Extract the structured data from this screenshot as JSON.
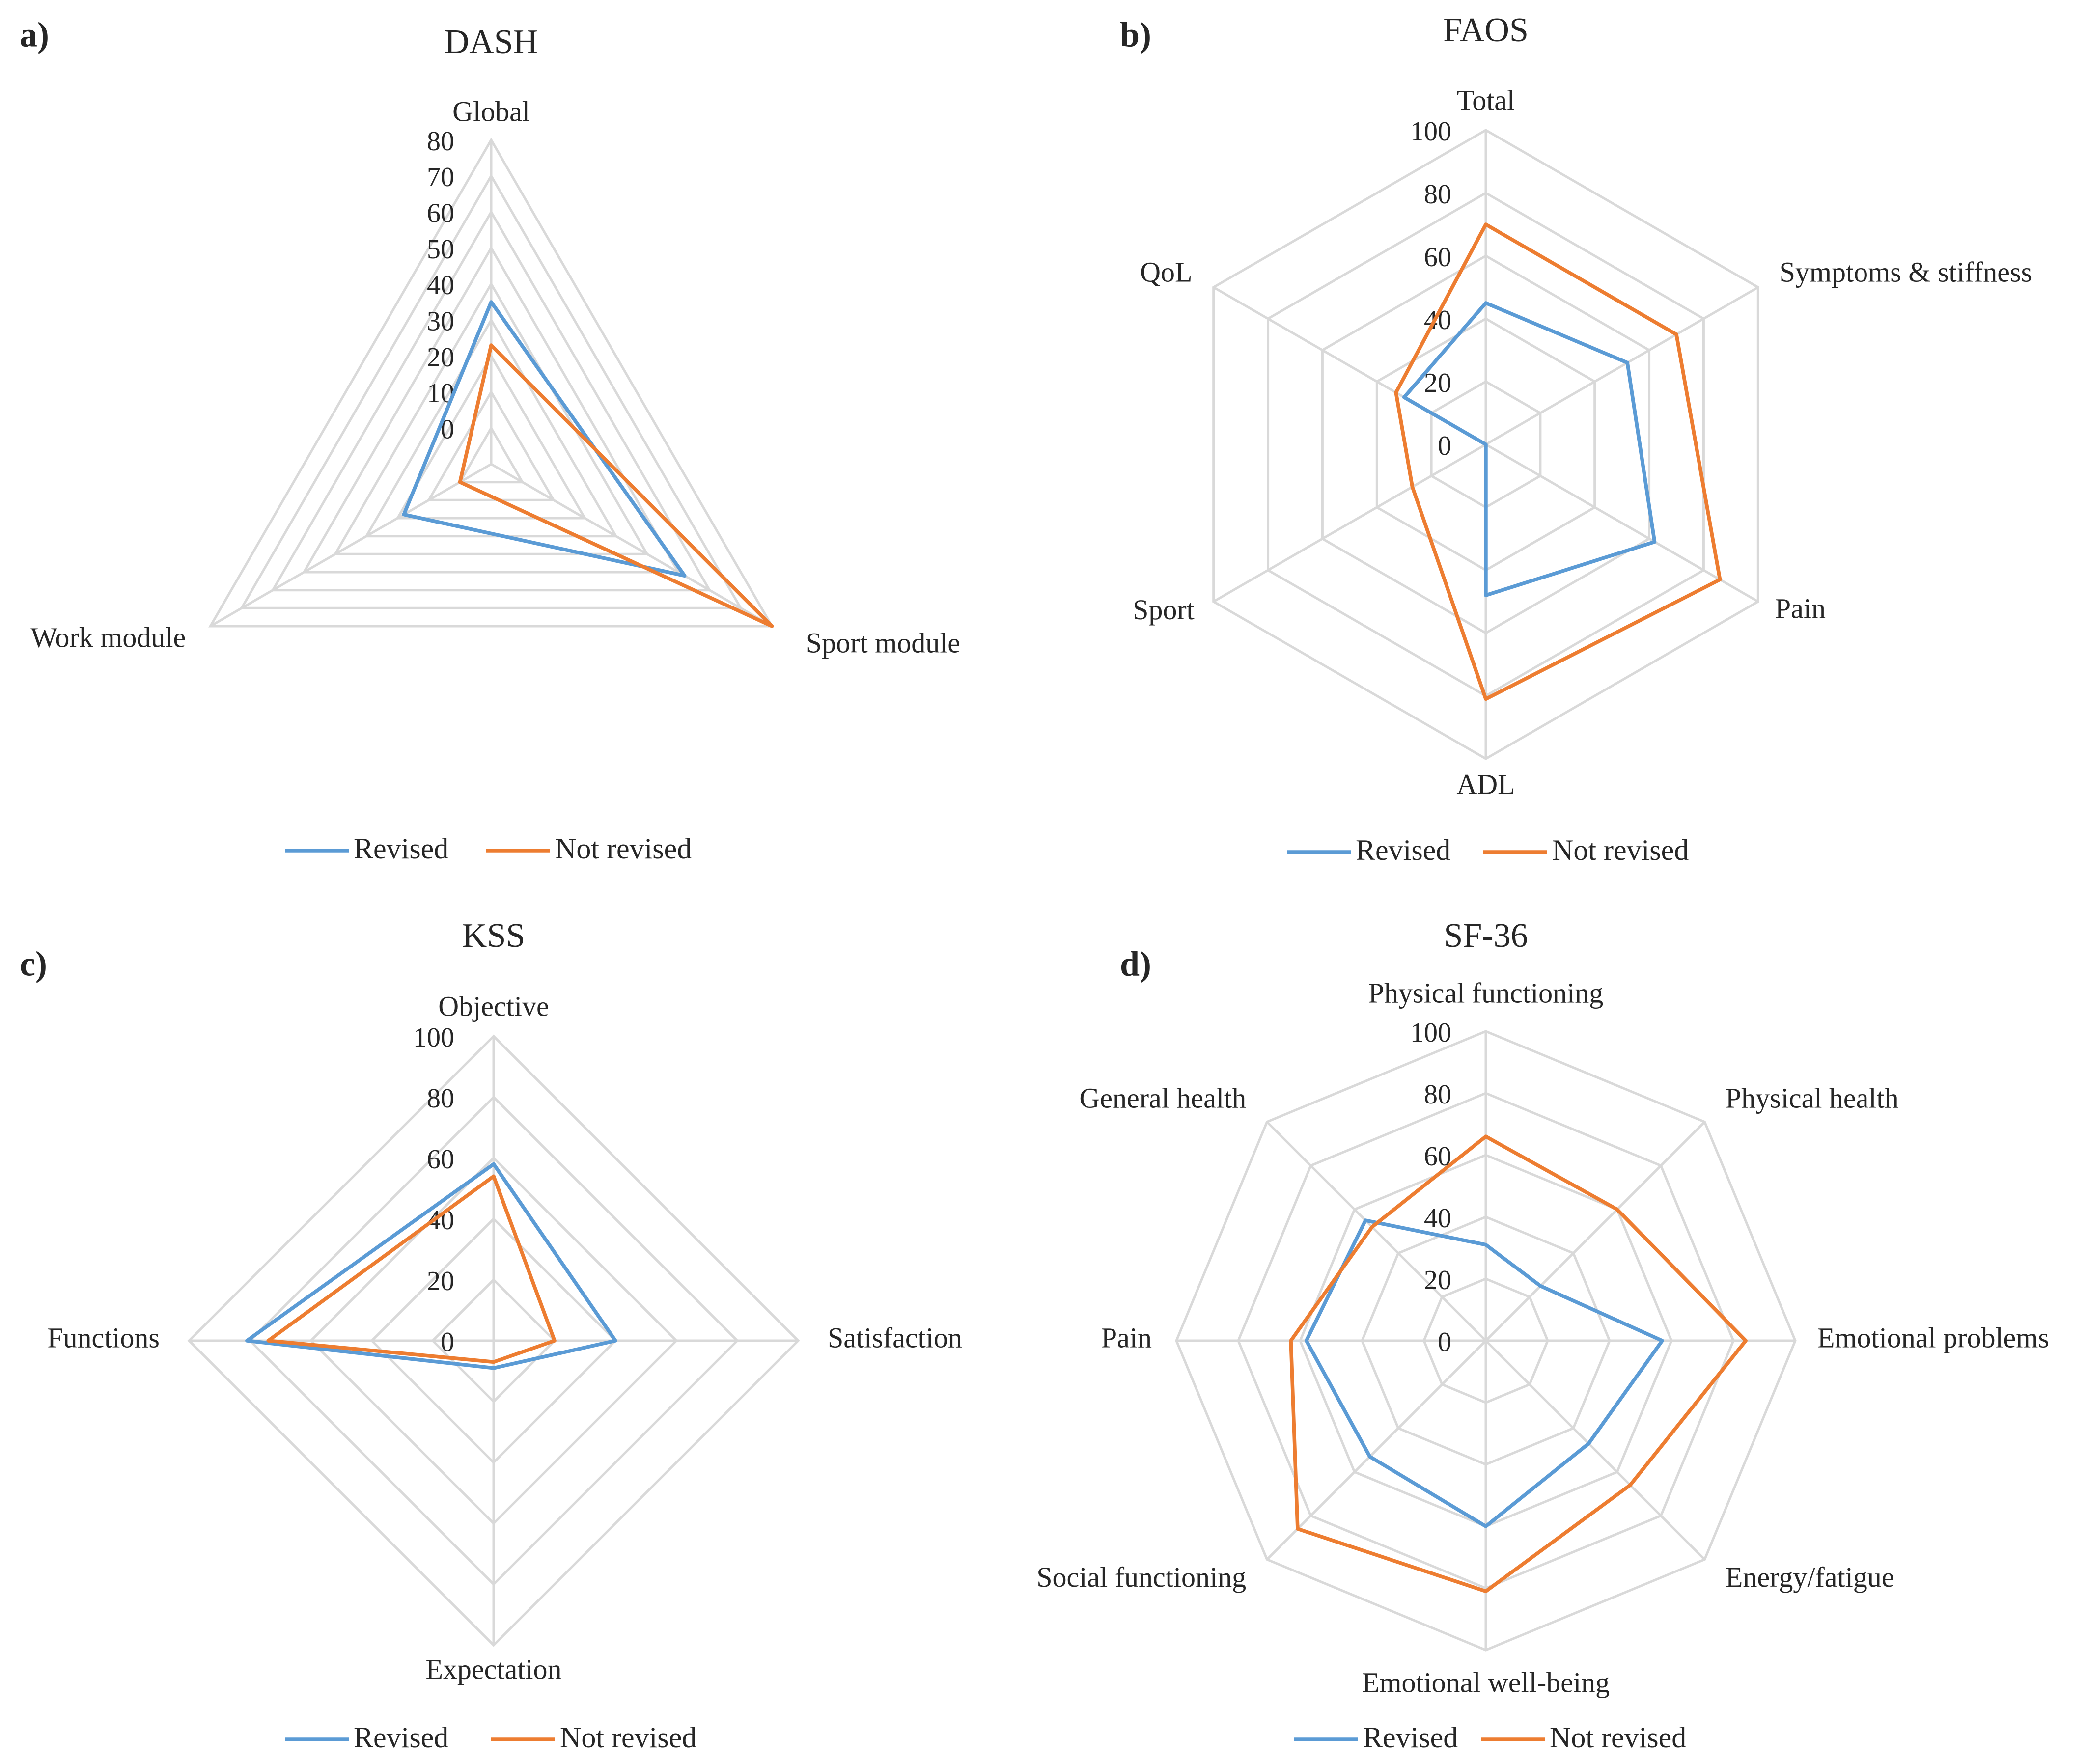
{
  "colors": {
    "revised": "#5b9bd5",
    "not_revised": "#ed7d31",
    "grid": "#d9d9d9",
    "text": "#262626"
  },
  "legend": {
    "revised": "Revised",
    "not_revised": "Not revised"
  },
  "chart_data": [
    {
      "type": "radar",
      "panel": "a)",
      "title": "DASH",
      "categories": [
        "Global",
        "Sport module",
        "Work module"
      ],
      "ticks": [
        "0",
        "10",
        "20",
        "30",
        "40",
        "50",
        "60",
        "70",
        "80"
      ],
      "rmin": -10,
      "rmax": 80,
      "series": [
        {
          "name": "Revised",
          "values": [
            35,
            52,
            18
          ]
        },
        {
          "name": "Not revised",
          "values": [
            23,
            80,
            0
          ]
        }
      ]
    },
    {
      "type": "radar",
      "panel": "b)",
      "title": "FAOS",
      "categories": [
        "Total",
        "Symptoms & stiffness",
        "Pain",
        "ADL",
        "Sport",
        "QoL"
      ],
      "ticks": [
        "0",
        "20",
        "40",
        "60",
        "80",
        "100"
      ],
      "rmin": 0,
      "rmax": 100,
      "series": [
        {
          "name": "Revised",
          "values": [
            45,
            52,
            62,
            48,
            0,
            30
          ]
        },
        {
          "name": "Not revised",
          "values": [
            70,
            70,
            86,
            81,
            27,
            33
          ]
        }
      ]
    },
    {
      "type": "radar",
      "panel": "c)",
      "title": "KSS",
      "categories": [
        "Objective",
        "Satisfaction",
        "Expectation",
        "Functions"
      ],
      "ticks": [
        "0",
        "20",
        "40",
        "60",
        "80",
        "100"
      ],
      "rmin": 0,
      "rmax": 100,
      "series": [
        {
          "name": "Revised",
          "values": [
            58,
            40,
            9,
            81
          ]
        },
        {
          "name": "Not revised",
          "values": [
            54,
            20,
            7,
            74
          ]
        }
      ]
    },
    {
      "type": "radar",
      "panel": "d)",
      "title": "SF-36",
      "categories": [
        "Physical functioning",
        "Physical health",
        "Emotional problems",
        "Energy/fatigue",
        "Emotional well-being",
        "Social functioning",
        "Pain",
        "General health"
      ],
      "ticks": [
        "0",
        "20",
        "40",
        "60",
        "80",
        "100"
      ],
      "rmin": 0,
      "rmax": 100,
      "series": [
        {
          "name": "Revised",
          "values": [
            31,
            25,
            57,
            47,
            60,
            53,
            58,
            55
          ]
        },
        {
          "name": "Not revised",
          "values": [
            66,
            60,
            84,
            66,
            81,
            86,
            63,
            52
          ]
        }
      ]
    }
  ]
}
